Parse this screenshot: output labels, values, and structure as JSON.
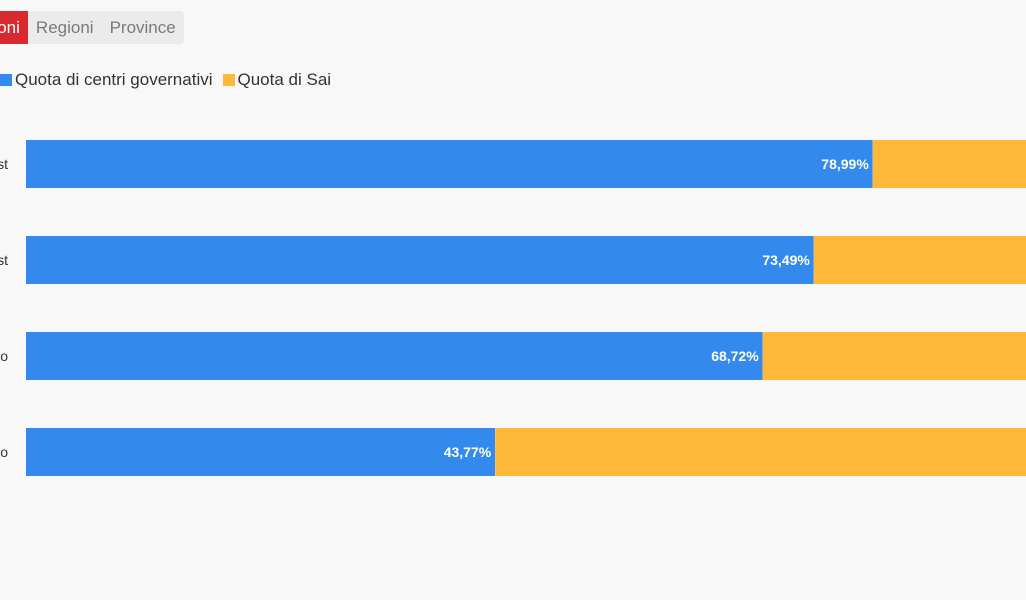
{
  "tabs": [
    {
      "label": "gioni",
      "active": true
    },
    {
      "label": "Regioni",
      "active": false
    },
    {
      "label": "Province",
      "active": false
    }
  ],
  "legend": [
    {
      "label": "Quota di centri governativi",
      "color": "#3389ec"
    },
    {
      "label": "Quota di Sai",
      "color": "#ffb93a"
    }
  ],
  "chart_data": {
    "type": "bar",
    "orientation": "horizontal",
    "stacked": true,
    "categories": [
      "st",
      "st",
      "o",
      "o"
    ],
    "series": [
      {
        "name": "Quota di centri governativi",
        "values": [
          78.99,
          73.49,
          68.72,
          43.77
        ],
        "color": "#3389ec"
      },
      {
        "name": "Quota di Sai",
        "values": [
          21.01,
          26.51,
          31.28,
          56.23
        ],
        "color": "#ffb93a"
      }
    ],
    "data_labels": [
      "78,99%",
      "73,49%",
      "68,72%",
      "43,77%"
    ],
    "xlim": [
      0,
      100
    ],
    "title": "",
    "xlabel": "",
    "ylabel": ""
  }
}
